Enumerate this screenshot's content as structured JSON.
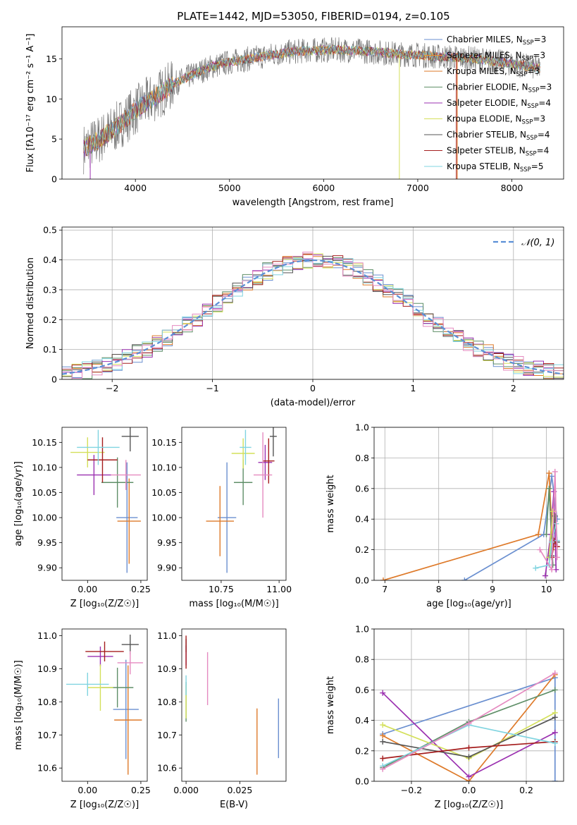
{
  "figure": {
    "title": "PLATE=1442, MJD=53050, FIBERID=0194, z=0.105"
  },
  "chart_data": [
    {
      "id": "spectrum",
      "type": "line",
      "xlabel": "wavelength [Angstrom, rest frame]",
      "ylabel": "Flux [fλ10⁻¹⁷ erg cm⁻² s⁻¹ A⁻¹]",
      "xlim": [
        3220,
        8550
      ],
      "ylim": [
        0,
        19
      ],
      "xticks": [
        4000,
        5000,
        6000,
        7000,
        8000
      ],
      "yticks": [
        0,
        5,
        10,
        15
      ],
      "grid": false,
      "legend_loc": "right",
      "continuum": {
        "x": [
          3450,
          3600,
          3800,
          4000,
          4200,
          4400,
          4600,
          4800,
          5000,
          5200,
          5400,
          5600,
          5800,
          6000,
          6200,
          6400,
          6600,
          6800,
          7000,
          7200,
          7400,
          7600,
          7800,
          8000,
          8200,
          8300
        ],
        "y": [
          3.8,
          4.8,
          6.5,
          8.6,
          10.2,
          11.8,
          13.0,
          14.0,
          14.6,
          15.0,
          15.4,
          15.8,
          16.0,
          16.1,
          16.1,
          16.0,
          15.8,
          15.6,
          15.5,
          15.3,
          15.2,
          15.0,
          14.7,
          14.4,
          14.0,
          13.8
        ]
      },
      "dips": [
        {
          "series": "Salpeter ELODIE",
          "x": 3520
        },
        {
          "series": "Kroupa ELODIE",
          "x": 6805
        },
        {
          "series": "Salpeter STELIB",
          "x": 7410
        },
        {
          "series": "Kroupa MILES",
          "x": 7420
        }
      ],
      "series": [
        {
          "name": "Chabrier MILES, N$_{SSP}$=3",
          "label_main": "Chabrier MILES, N",
          "label_sub": "SSP",
          "label_end": "=3",
          "color": "#6a8fd0"
        },
        {
          "name": "Salpeter MILES, N$_{SSP}$=3",
          "label_main": "Salpeter MILES, N",
          "label_sub": "SSP",
          "label_end": "=3",
          "color": "#f08a28"
        },
        {
          "name": "Kroupa MILES, N$_{SSP}$=3",
          "label_main": "Kroupa MILES, N",
          "label_sub": "SSP",
          "label_end": "=3",
          "color": "#de7a2a"
        },
        {
          "name": "Chabrier ELODIE, N$_{SSP}$=3",
          "label_main": "Chabrier ELODIE, N",
          "label_sub": "SSP",
          "label_end": "=3",
          "color": "#5f8f68"
        },
        {
          "name": "Salpeter ELODIE, N$_{SSP}$=4",
          "label_main": "Salpeter ELODIE, N",
          "label_sub": "SSP",
          "label_end": "=4",
          "color": "#9b30b0"
        },
        {
          "name": "Kroupa ELODIE, N$_{SSP}$=3",
          "label_main": "Kroupa ELODIE, N",
          "label_sub": "SSP",
          "label_end": "=3",
          "color": "#d4e05a"
        },
        {
          "name": "Chabrier STELIB, N$_{SSP}$=4",
          "label_main": "Chabrier STELIB, N",
          "label_sub": "SSP",
          "label_end": "=4",
          "color": "#555555"
        },
        {
          "name": "Salpeter STELIB, N$_{SSP}$=4",
          "label_main": "Salpeter STELIB, N",
          "label_sub": "SSP",
          "label_end": "=4",
          "color": "#a51e1e"
        },
        {
          "name": "Kroupa STELIB, N$_{SSP}$=5",
          "label_main": "Kroupa STELIB, N",
          "label_sub": "SSP",
          "label_end": "=5",
          "color": "#80d4e0"
        }
      ]
    },
    {
      "id": "residual-histogram",
      "type": "line",
      "xlabel": "(data-model)/error",
      "ylabel": "Normed distribution",
      "xlim": [
        -2.5,
        2.5
      ],
      "ylim": [
        0,
        0.51
      ],
      "xticks": [
        -2,
        -1,
        0,
        1,
        2
      ],
      "yticks": [
        0.0,
        0.1,
        0.2,
        0.3,
        0.4,
        0.5
      ],
      "grid": true,
      "legend_loc": "top-right",
      "legend_label": "𝒩(0, 1)",
      "bin_width": 0.1,
      "gaussian": {
        "mean": 0,
        "sigma": 1,
        "color": "#5b8fd6"
      },
      "series_colors": [
        "#6a8fd0",
        "#de7a2a",
        "#5f8f68",
        "#9b30b0",
        "#d4e05a",
        "#555555",
        "#a51e1e",
        "#80d4e0",
        "#e58ac0"
      ]
    },
    {
      "id": "age-vs-Z",
      "type": "scatter",
      "xlabel": "Z [log₁₀(Z/Z☉)]",
      "ylabel": "age  [log₁₀(age/yr)]",
      "xlim": [
        -0.12,
        0.28
      ],
      "ylim": [
        9.875,
        10.18
      ],
      "xticks": [
        0.0,
        0.25
      ],
      "xtick_labels": [
        "0.00",
        "0.25"
      ],
      "yticks": [
        9.9,
        9.95,
        10.0,
        10.05,
        10.1,
        10.15
      ],
      "ytick_labels": [
        "9.90",
        "9.95",
        "10.00",
        "10.05",
        "10.10",
        "10.15"
      ],
      "grid": false,
      "points": [
        {
          "x": 0.185,
          "xerr": 0.05,
          "y": 10.0,
          "yerr": 0.11,
          "color": "#6a8fd0"
        },
        {
          "x": 0.195,
          "xerr": 0.055,
          "y": 9.993,
          "yerr": 0.085,
          "color": "#de7a2a"
        },
        {
          "x": 0.14,
          "xerr": 0.075,
          "y": 10.07,
          "yerr": 0.05,
          "color": "#5f8f68"
        },
        {
          "x": 0.03,
          "xerr": 0.08,
          "y": 10.085,
          "yerr": 0.04,
          "color": "#9b30b0"
        },
        {
          "x": 0.0,
          "xerr": 0.08,
          "y": 10.13,
          "yerr": 0.03,
          "color": "#d4e05a"
        },
        {
          "x": 0.2,
          "xerr": 0.04,
          "y": 10.162,
          "yerr": 0.03,
          "color": "#555555"
        },
        {
          "x": 0.07,
          "xerr": 0.07,
          "y": 10.115,
          "yerr": 0.045,
          "color": "#a51e1e"
        },
        {
          "x": 0.05,
          "xerr": 0.1,
          "y": 10.14,
          "yerr": 0.035,
          "color": "#80d4e0"
        },
        {
          "x": 0.18,
          "xerr": 0.07,
          "y": 10.085,
          "yerr": 0.03,
          "color": "#e58ac0"
        }
      ]
    },
    {
      "id": "age-vs-mass",
      "type": "scatter",
      "xlabel": "mass [log₁₀(M/M☉)]",
      "ylabel": "",
      "xlim": [
        10.58,
        11.03
      ],
      "ylim": [
        9.875,
        10.18
      ],
      "xticks": [
        10.75,
        11.0
      ],
      "xtick_labels": [
        "10.75",
        "11.00"
      ],
      "yticks": [
        9.9,
        9.95,
        10.0,
        10.05,
        10.1,
        10.15
      ],
      "ytick_labels": [
        "9.90",
        "9.95",
        "10.00",
        "10.05",
        "10.10",
        "10.15"
      ],
      "grid": false,
      "points": [
        {
          "x": 10.775,
          "xerr": 0.04,
          "y": 10.0,
          "yerr": 0.11,
          "color": "#6a8fd0"
        },
        {
          "x": 10.745,
          "xerr": 0.06,
          "y": 9.993,
          "yerr": 0.07,
          "color": "#de7a2a"
        },
        {
          "x": 10.845,
          "xerr": 0.04,
          "y": 10.07,
          "yerr": 0.045,
          "color": "#5f8f68"
        },
        {
          "x": 10.94,
          "xerr": 0.03,
          "y": 10.11,
          "yerr": 0.035,
          "color": "#9b30b0"
        },
        {
          "x": 10.845,
          "xerr": 0.05,
          "y": 10.128,
          "yerr": 0.03,
          "color": "#d4e05a"
        },
        {
          "x": 10.975,
          "xerr": 0.015,
          "y": 10.162,
          "yerr": 0.04,
          "color": "#555555"
        },
        {
          "x": 10.955,
          "xerr": 0.025,
          "y": 10.113,
          "yerr": 0.045,
          "color": "#a51e1e"
        },
        {
          "x": 10.855,
          "xerr": 0.025,
          "y": 10.14,
          "yerr": 0.035,
          "color": "#80d4e0"
        },
        {
          "x": 10.93,
          "xerr": 0.04,
          "y": 10.085,
          "yerr": 0.085,
          "color": "#e58ac0"
        }
      ]
    },
    {
      "id": "weight-vs-age",
      "type": "line",
      "xlabel": "age  [log₁₀(age/yr)]",
      "ylabel": "mass weight",
      "xlim": [
        6.8,
        10.32
      ],
      "ylim": [
        0,
        1
      ],
      "xticks": [
        7,
        8,
        9,
        10
      ],
      "yticks": [
        0.0,
        0.2,
        0.4,
        0.6,
        0.8,
        1.0
      ],
      "ytick_labels": [
        "0.0",
        "0.2",
        "0.4",
        "0.6",
        "0.8",
        "1.0"
      ],
      "grid": true,
      "series": [
        {
          "color": "#6a8fd0",
          "x": [
            8.48,
            9.95,
            10.1,
            10.2
          ],
          "y": [
            0.0,
            0.3,
            0.68,
            0.4
          ]
        },
        {
          "color": "#de7a2a",
          "x": [
            6.97,
            9.85,
            10.05,
            10.12
          ],
          "y": [
            0.0,
            0.3,
            0.7,
            0.2
          ]
        },
        {
          "color": "#5f8f68",
          "x": [
            10.0,
            10.05,
            10.12
          ],
          "y": [
            0.3,
            0.6,
            0.1
          ]
        },
        {
          "color": "#9b30b0",
          "x": [
            9.98,
            10.08,
            10.14,
            10.18
          ],
          "y": [
            0.03,
            0.3,
            0.58,
            0.07
          ]
        },
        {
          "color": "#d4e05a",
          "x": [
            10.05,
            10.12,
            10.18
          ],
          "y": [
            0.15,
            0.45,
            0.37
          ]
        },
        {
          "color": "#555555",
          "x": [
            10.1,
            10.16,
            10.2
          ],
          "y": [
            0.16,
            0.42,
            0.25
          ]
        },
        {
          "color": "#a51e1e",
          "x": [
            10.1,
            10.15,
            10.2
          ],
          "y": [
            0.15,
            0.26,
            0.22
          ]
        },
        {
          "color": "#80d4e0",
          "x": [
            9.8,
            10.05,
            10.1,
            10.18,
            10.2
          ],
          "y": [
            0.08,
            0.1,
            0.25,
            0.37,
            0.26
          ]
        },
        {
          "color": "#e58ac0",
          "x": [
            9.88,
            10.1,
            10.16,
            10.2
          ],
          "y": [
            0.2,
            0.07,
            0.71,
            0.15
          ]
        }
      ]
    },
    {
      "id": "mass-vs-Z",
      "type": "scatter",
      "xlabel": "Z [log₁₀(Z/Z☉)]",
      "ylabel": "mass [log₁₀(M/M☉)]",
      "xlim": [
        -0.12,
        0.28
      ],
      "ylim": [
        10.56,
        11.02
      ],
      "xticks": [
        0.0,
        0.25
      ],
      "xtick_labels": [
        "0.00",
        "0.25"
      ],
      "yticks": [
        10.6,
        10.7,
        10.8,
        10.9,
        11.0
      ],
      "ytick_labels": [
        "10.6",
        "10.7",
        "10.8",
        "10.9",
        "11.0"
      ],
      "grid": false,
      "points": [
        {
          "x": 0.18,
          "xerr": 0.06,
          "y": 10.777,
          "yerr": 0.15,
          "color": "#6a8fd0"
        },
        {
          "x": 0.19,
          "xerr": 0.065,
          "y": 10.745,
          "yerr": 0.165,
          "color": "#de7a2a"
        },
        {
          "x": 0.14,
          "xerr": 0.075,
          "y": 10.843,
          "yerr": 0.06,
          "color": "#5f8f68"
        },
        {
          "x": 0.06,
          "xerr": 0.06,
          "y": 10.937,
          "yerr": 0.03,
          "color": "#9b30b0"
        },
        {
          "x": 0.06,
          "xerr": 0.06,
          "y": 10.843,
          "yerr": 0.07,
          "color": "#d4e05a"
        },
        {
          "x": 0.2,
          "xerr": 0.04,
          "y": 10.973,
          "yerr": 0.03,
          "color": "#555555"
        },
        {
          "x": 0.08,
          "xerr": 0.09,
          "y": 10.952,
          "yerr": 0.03,
          "color": "#a51e1e"
        },
        {
          "x": 0.0,
          "xerr": 0.1,
          "y": 10.853,
          "yerr": 0.035,
          "color": "#80d4e0"
        },
        {
          "x": 0.2,
          "xerr": 0.06,
          "y": 10.918,
          "yerr": 0.035,
          "color": "#e58ac0"
        }
      ]
    },
    {
      "id": "mass-vs-EBV",
      "type": "scatter",
      "xlabel": "E(B-V)",
      "ylabel": "",
      "xlim": [
        -0.002,
        0.0465
      ],
      "ylim": [
        10.56,
        11.02
      ],
      "xticks": [
        0.0,
        0.025
      ],
      "xtick_labels": [
        "0.000",
        "0.025"
      ],
      "yticks": [
        10.6,
        10.7,
        10.8,
        10.9,
        11.0
      ],
      "ytick_labels": [
        "10.6",
        "10.7",
        "10.8",
        "10.9",
        "11.0"
      ],
      "grid": false,
      "points": [
        {
          "x": 0.043,
          "y": 10.72,
          "yerr": 0.09,
          "color": "#6a8fd0"
        },
        {
          "x": 0.033,
          "y": 10.68,
          "yerr": 0.1,
          "color": "#de7a2a"
        },
        {
          "x": 0.0,
          "y": 10.8,
          "yerr": 0.06,
          "color": "#5f8f68"
        },
        {
          "x": 0.0,
          "y": 10.94,
          "yerr": 0.03,
          "color": "#9b30b0"
        },
        {
          "x": 0.0,
          "y": 10.8,
          "yerr": 0.05,
          "color": "#d4e05a"
        },
        {
          "x": 0.0,
          "y": 10.97,
          "yerr": 0.02,
          "color": "#555555"
        },
        {
          "x": 0.0,
          "y": 10.95,
          "yerr": 0.05,
          "color": "#a51e1e"
        },
        {
          "x": 0.0,
          "y": 10.85,
          "yerr": 0.03,
          "color": "#80d4e0"
        },
        {
          "x": 0.01,
          "y": 10.87,
          "yerr": 0.08,
          "color": "#e58ac0"
        }
      ]
    },
    {
      "id": "weight-vs-Z",
      "type": "line",
      "xlabel": "Z [log₁₀(Z/Z☉)]",
      "ylabel": "mass weight",
      "xlim": [
        -0.33,
        0.33
      ],
      "ylim": [
        0,
        1
      ],
      "xticks": [
        -0.2,
        0.0,
        0.2
      ],
      "xtick_labels": [
        "−0.2",
        "0.0",
        "0.2"
      ],
      "yticks": [
        0.0,
        0.2,
        0.4,
        0.6,
        0.8,
        1.0
      ],
      "ytick_labels": [
        "0.0",
        "0.2",
        "0.4",
        "0.6",
        "0.8",
        "1.0"
      ],
      "grid": true,
      "series": [
        {
          "color": "#6a8fd0",
          "x": [
            -0.3,
            0.3,
            0.3
          ],
          "y": [
            0.31,
            0.68,
            0.0
          ]
        },
        {
          "color": "#de7a2a",
          "x": [
            -0.3,
            0.0,
            0.3
          ],
          "y": [
            0.3,
            0.0,
            0.7
          ]
        },
        {
          "color": "#5f8f68",
          "x": [
            -0.3,
            0.0,
            0.3
          ],
          "y": [
            0.09,
            0.39,
            0.6
          ]
        },
        {
          "color": "#9b30b0",
          "x": [
            -0.3,
            0.0,
            0.3
          ],
          "y": [
            0.58,
            0.03,
            0.32
          ]
        },
        {
          "color": "#d4e05a",
          "x": [
            -0.3,
            0.0,
            0.3
          ],
          "y": [
            0.37,
            0.15,
            0.45
          ]
        },
        {
          "color": "#555555",
          "x": [
            -0.3,
            0.0,
            0.3
          ],
          "y": [
            0.26,
            0.16,
            0.42
          ]
        },
        {
          "color": "#a51e1e",
          "x": [
            -0.3,
            0.0,
            0.3
          ],
          "y": [
            0.15,
            0.22,
            0.26
          ]
        },
        {
          "color": "#80d4e0",
          "x": [
            -0.3,
            0.0,
            0.3
          ],
          "y": [
            0.1,
            0.37,
            0.25
          ]
        },
        {
          "color": "#e58ac0",
          "x": [
            -0.3,
            0.0,
            0.3
          ],
          "y": [
            0.08,
            0.38,
            0.71
          ]
        }
      ]
    }
  ]
}
